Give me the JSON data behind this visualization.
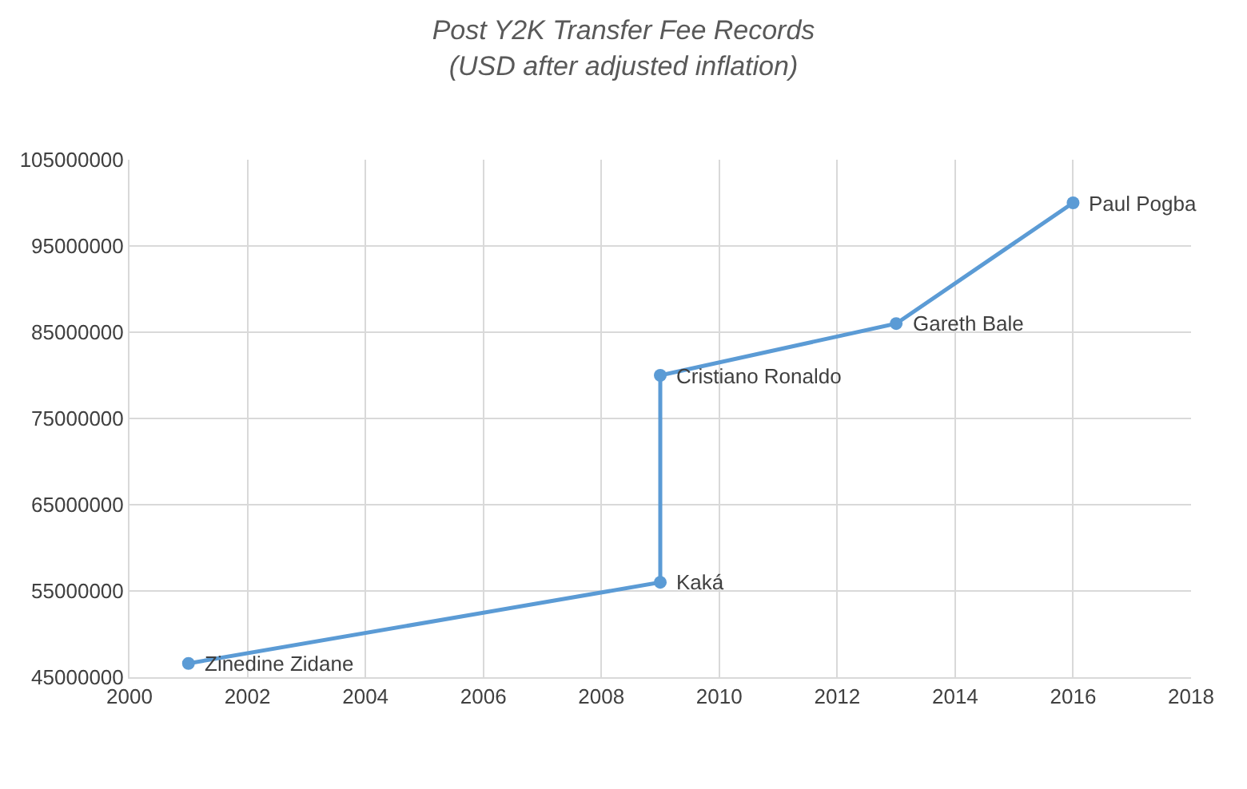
{
  "chart_data": {
    "type": "line",
    "title": "Post Y2K Transfer Fee Records\n(USD after adjusted inflation)",
    "x": [
      2001,
      2009,
      2009,
      2013,
      2016
    ],
    "series": [
      {
        "color": "#5b9bd5",
        "values": [
          46600000,
          56000000,
          80000000,
          86000000,
          100000000
        ]
      }
    ],
    "annotations": [
      {
        "text": "Zinedine Zidane",
        "x": 2001,
        "y": 46600000
      },
      {
        "text": "Kaká",
        "x": 2009,
        "y": 56000000
      },
      {
        "text": "Cristiano Ronaldo",
        "x": 2009,
        "y": 80000000
      },
      {
        "text": "Gareth Bale",
        "x": 2013,
        "y": 86000000
      },
      {
        "text": "Paul Pogba",
        "x": 2016,
        "y": 100000000
      }
    ],
    "xlim": [
      2000,
      2018
    ],
    "xticks": [
      2000,
      2002,
      2004,
      2006,
      2008,
      2010,
      2012,
      2014,
      2016,
      2018
    ],
    "ylim": [
      45000000,
      105000000
    ],
    "yticks": [
      45000000,
      55000000,
      65000000,
      75000000,
      85000000,
      95000000,
      105000000
    ],
    "grid": true,
    "marker": "circle",
    "line_style": "solid"
  }
}
